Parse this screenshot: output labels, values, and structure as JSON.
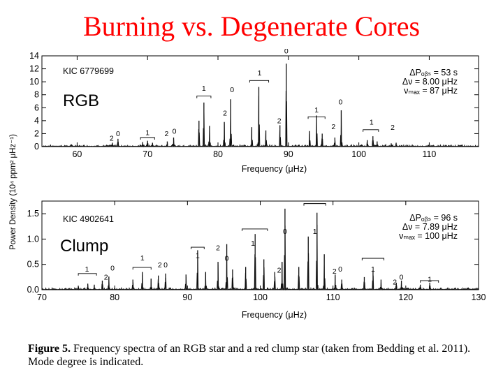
{
  "slide": {
    "title": "Burning vs. Degenerate Cores"
  },
  "caption": {
    "label": "Figure 5.",
    "text": "Frequency spectra of an RGB star and a red clump star (taken from Bedding et al. 2011). Mode degree is indicated."
  },
  "y_axis_label": "Power Density (10⁴ ppm² μHz⁻¹)",
  "colors": {
    "title": "#ff0000",
    "spectrum": "#111111",
    "axis": "#000000"
  },
  "chart_data": [
    {
      "type": "line",
      "panel": "top",
      "overlay_label": "RGB",
      "star": "KIC 6779699",
      "params": [
        "ΔPₒᵦₛ = 53 s",
        "Δν = 8.00 μHz",
        "νₘₐₓ = 87 μHz"
      ],
      "xlabel": "Frequency (μHz)",
      "xlim": [
        55,
        117
      ],
      "ylim": [
        0,
        14
      ],
      "xticks": [
        60,
        70,
        80,
        90,
        100,
        110
      ],
      "yticks": [
        0,
        2,
        4,
        6,
        8,
        10,
        12,
        14
      ],
      "peaks": [
        {
          "x": 65.0,
          "y": 0.6
        },
        {
          "x": 65.8,
          "y": 1.2
        },
        {
          "x": 69.3,
          "y": 0.7
        },
        {
          "x": 70.0,
          "y": 0.9
        },
        {
          "x": 70.7,
          "y": 0.6
        },
        {
          "x": 72.8,
          "y": 0.8
        },
        {
          "x": 73.7,
          "y": 1.4
        },
        {
          "x": 77.3,
          "y": 4.0
        },
        {
          "x": 78.0,
          "y": 6.8
        },
        {
          "x": 78.8,
          "y": 3.2
        },
        {
          "x": 80.9,
          "y": 3.8
        },
        {
          "x": 81.8,
          "y": 7.3
        },
        {
          "x": 84.8,
          "y": 3.0
        },
        {
          "x": 85.8,
          "y": 9.2
        },
        {
          "x": 86.8,
          "y": 2.5
        },
        {
          "x": 88.8,
          "y": 3.3
        },
        {
          "x": 89.7,
          "y": 12.8
        },
        {
          "x": 93.0,
          "y": 2.4
        },
        {
          "x": 94.0,
          "y": 4.8
        },
        {
          "x": 94.8,
          "y": 2.0
        },
        {
          "x": 96.6,
          "y": 1.4
        },
        {
          "x": 97.5,
          "y": 5.6
        },
        {
          "x": 101.2,
          "y": 1.0
        },
        {
          "x": 102.0,
          "y": 1.6
        },
        {
          "x": 102.6,
          "y": 0.8
        },
        {
          "x": 104.6,
          "y": 0.5
        },
        {
          "x": 105.3,
          "y": 0.6
        }
      ],
      "annotations": [
        {
          "text": "2",
          "x": 64.9,
          "y": 0.9
        },
        {
          "text": "0",
          "x": 65.8,
          "y": 1.6
        },
        {
          "text": "1",
          "x": 70.0,
          "y": 1.8
        },
        {
          "text": "2",
          "x": 72.7,
          "y": 1.6
        },
        {
          "text": "0",
          "x": 73.8,
          "y": 2.0
        },
        {
          "text": "1",
          "x": 78.0,
          "y": 8.6
        },
        {
          "text": "2",
          "x": 81.0,
          "y": 4.8
        },
        {
          "text": "0",
          "x": 82.0,
          "y": 8.4
        },
        {
          "text": "1",
          "x": 85.9,
          "y": 11.0
        },
        {
          "text": "2",
          "x": 88.7,
          "y": 3.6
        },
        {
          "text": "0",
          "x": 89.7,
          "y": 14.4
        },
        {
          "text": "1",
          "x": 94.0,
          "y": 5.3
        },
        {
          "text": "2",
          "x": 96.4,
          "y": 2.7
        },
        {
          "text": "0",
          "x": 97.4,
          "y": 6.5
        },
        {
          "text": "1",
          "x": 101.8,
          "y": 3.4
        },
        {
          "text": "2",
          "x": 104.8,
          "y": 2.6
        }
      ],
      "brackets": [
        {
          "x1": 69.0,
          "x2": 71.0,
          "y": 1.4
        },
        {
          "x1": 77.0,
          "x2": 79.0,
          "y": 7.8
        },
        {
          "x1": 84.5,
          "x2": 87.2,
          "y": 10.2
        },
        {
          "x1": 92.8,
          "x2": 95.2,
          "y": 4.6
        },
        {
          "x1": 100.6,
          "x2": 102.8,
          "y": 2.6
        }
      ]
    },
    {
      "type": "line",
      "panel": "bottom",
      "overlay_label": "Clump",
      "star": "KIC 4902641",
      "params": [
        "ΔPₒᵦₛ = 96 s",
        "Δν = 7.89 μHz",
        "νₘₐₓ = 100 μHz"
      ],
      "xlabel": "Frequency (μHz)",
      "xlim": [
        70,
        130
      ],
      "ylim": [
        0,
        1.75
      ],
      "xticks": [
        70,
        80,
        90,
        100,
        110,
        120,
        130
      ],
      "yticks": [
        0.0,
        0.5,
        1.0,
        1.5
      ],
      "peaks": [
        {
          "x": 75.0,
          "y": 0.08
        },
        {
          "x": 76.3,
          "y": 0.12
        },
        {
          "x": 77.2,
          "y": 0.1
        },
        {
          "x": 78.3,
          "y": 0.18
        },
        {
          "x": 79.2,
          "y": 0.26
        },
        {
          "x": 82.5,
          "y": 0.2
        },
        {
          "x": 83.8,
          "y": 0.35
        },
        {
          "x": 85.0,
          "y": 0.22
        },
        {
          "x": 86.0,
          "y": 0.28
        },
        {
          "x": 87.0,
          "y": 0.32
        },
        {
          "x": 89.8,
          "y": 0.3
        },
        {
          "x": 91.4,
          "y": 0.78
        },
        {
          "x": 92.5,
          "y": 0.35
        },
        {
          "x": 94.2,
          "y": 0.55
        },
        {
          "x": 95.4,
          "y": 0.9
        },
        {
          "x": 96.2,
          "y": 0.4
        },
        {
          "x": 98.0,
          "y": 0.45
        },
        {
          "x": 99.3,
          "y": 1.1
        },
        {
          "x": 100.5,
          "y": 0.6
        },
        {
          "x": 102.0,
          "y": 0.35
        },
        {
          "x": 103.0,
          "y": 0.55
        },
        {
          "x": 103.4,
          "y": 1.6
        },
        {
          "x": 105.3,
          "y": 0.45
        },
        {
          "x": 106.6,
          "y": 1.05
        },
        {
          "x": 107.8,
          "y": 1.52
        },
        {
          "x": 108.8,
          "y": 0.7
        },
        {
          "x": 110.3,
          "y": 0.3
        },
        {
          "x": 111.2,
          "y": 0.2
        },
        {
          "x": 114.3,
          "y": 0.25
        },
        {
          "x": 115.5,
          "y": 0.38
        },
        {
          "x": 116.6,
          "y": 0.2
        },
        {
          "x": 118.7,
          "y": 0.14
        },
        {
          "x": 119.4,
          "y": 0.18
        },
        {
          "x": 122.0,
          "y": 0.1
        },
        {
          "x": 123.3,
          "y": 0.14
        }
      ],
      "annotations": [
        {
          "text": "1",
          "x": 76.2,
          "y": 0.36
        },
        {
          "text": "2",
          "x": 78.8,
          "y": 0.2
        },
        {
          "text": "0",
          "x": 79.7,
          "y": 0.38
        },
        {
          "text": "1",
          "x": 83.8,
          "y": 0.58
        },
        {
          "text": "2",
          "x": 86.2,
          "y": 0.44
        },
        {
          "text": "0",
          "x": 87.0,
          "y": 0.44
        },
        {
          "text": "1",
          "x": 91.4,
          "y": 0.63
        },
        {
          "text": "2",
          "x": 94.2,
          "y": 0.78
        },
        {
          "text": "0",
          "x": 95.4,
          "y": 0.57
        },
        {
          "text": "1",
          "x": 99.0,
          "y": 0.87
        },
        {
          "text": "2",
          "x": 102.6,
          "y": 0.34
        },
        {
          "text": "0",
          "x": 103.4,
          "y": 1.1
        },
        {
          "text": "1",
          "x": 107.5,
          "y": 1.1
        },
        {
          "text": "2",
          "x": 110.2,
          "y": 0.32
        },
        {
          "text": "0",
          "x": 111.0,
          "y": 0.36
        },
        {
          "text": "1",
          "x": 115.5,
          "y": 0.36
        },
        {
          "text": "2",
          "x": 118.5,
          "y": 0.1
        },
        {
          "text": "0",
          "x": 119.4,
          "y": 0.2
        },
        {
          "text": "1",
          "x": 123.3,
          "y": 0.16
        }
      ],
      "brackets": [
        {
          "x1": 75.0,
          "x2": 77.5,
          "y": 0.32
        },
        {
          "x1": 82.5,
          "x2": 85.0,
          "y": 0.44
        },
        {
          "x1": 90.5,
          "x2": 92.3,
          "y": 0.84
        },
        {
          "x1": 97.5,
          "x2": 101.0,
          "y": 1.2
        },
        {
          "x1": 106.0,
          "x2": 109.0,
          "y": 1.7
        },
        {
          "x1": 114.0,
          "x2": 117.0,
          "y": 0.62
        },
        {
          "x1": 122.0,
          "x2": 124.5,
          "y": 0.18
        }
      ]
    }
  ]
}
